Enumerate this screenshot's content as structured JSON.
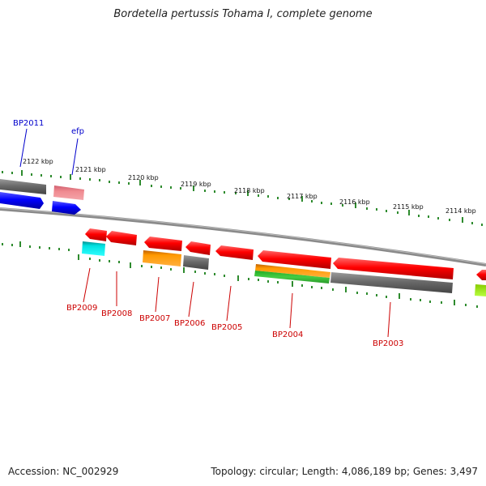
{
  "title": "Bordetella pertussis Tohama I, complete genome",
  "footer": {
    "accession": "Accession: NC_002929",
    "summary": "Topology: circular; Length: 4,086,189 bp; Genes: 3,497"
  },
  "scale": {
    "ticks": [
      "2122 kbp",
      "2121 kbp",
      "2120 kbp",
      "2119 kbp",
      "2118 kbp",
      "2117 kbp",
      "2116 kbp",
      "2115 kbp",
      "2114 kbp"
    ]
  },
  "genes": {
    "forward": [
      {
        "name": "BP2011",
        "color": "#0000ff"
      },
      {
        "name": "efp",
        "color": "#0000ff"
      }
    ],
    "reverse": [
      {
        "name": "BP2009",
        "color": "#cc0000"
      },
      {
        "name": "BP2008",
        "color": "#cc0000"
      },
      {
        "name": "BP2007",
        "color": "#cc0000"
      },
      {
        "name": "BP2006",
        "color": "#cc0000"
      },
      {
        "name": "BP2005",
        "color": "#cc0000"
      },
      {
        "name": "BP2004",
        "color": "#cc0000"
      },
      {
        "name": "BP2003",
        "color": "#cc0000"
      }
    ]
  },
  "colors": {
    "cds": "#ff0000",
    "backbone": "#8a8a8a",
    "tick": "#2e8b2e",
    "forward_label": "#0000cc",
    "reverse_label": "#cc0000"
  }
}
